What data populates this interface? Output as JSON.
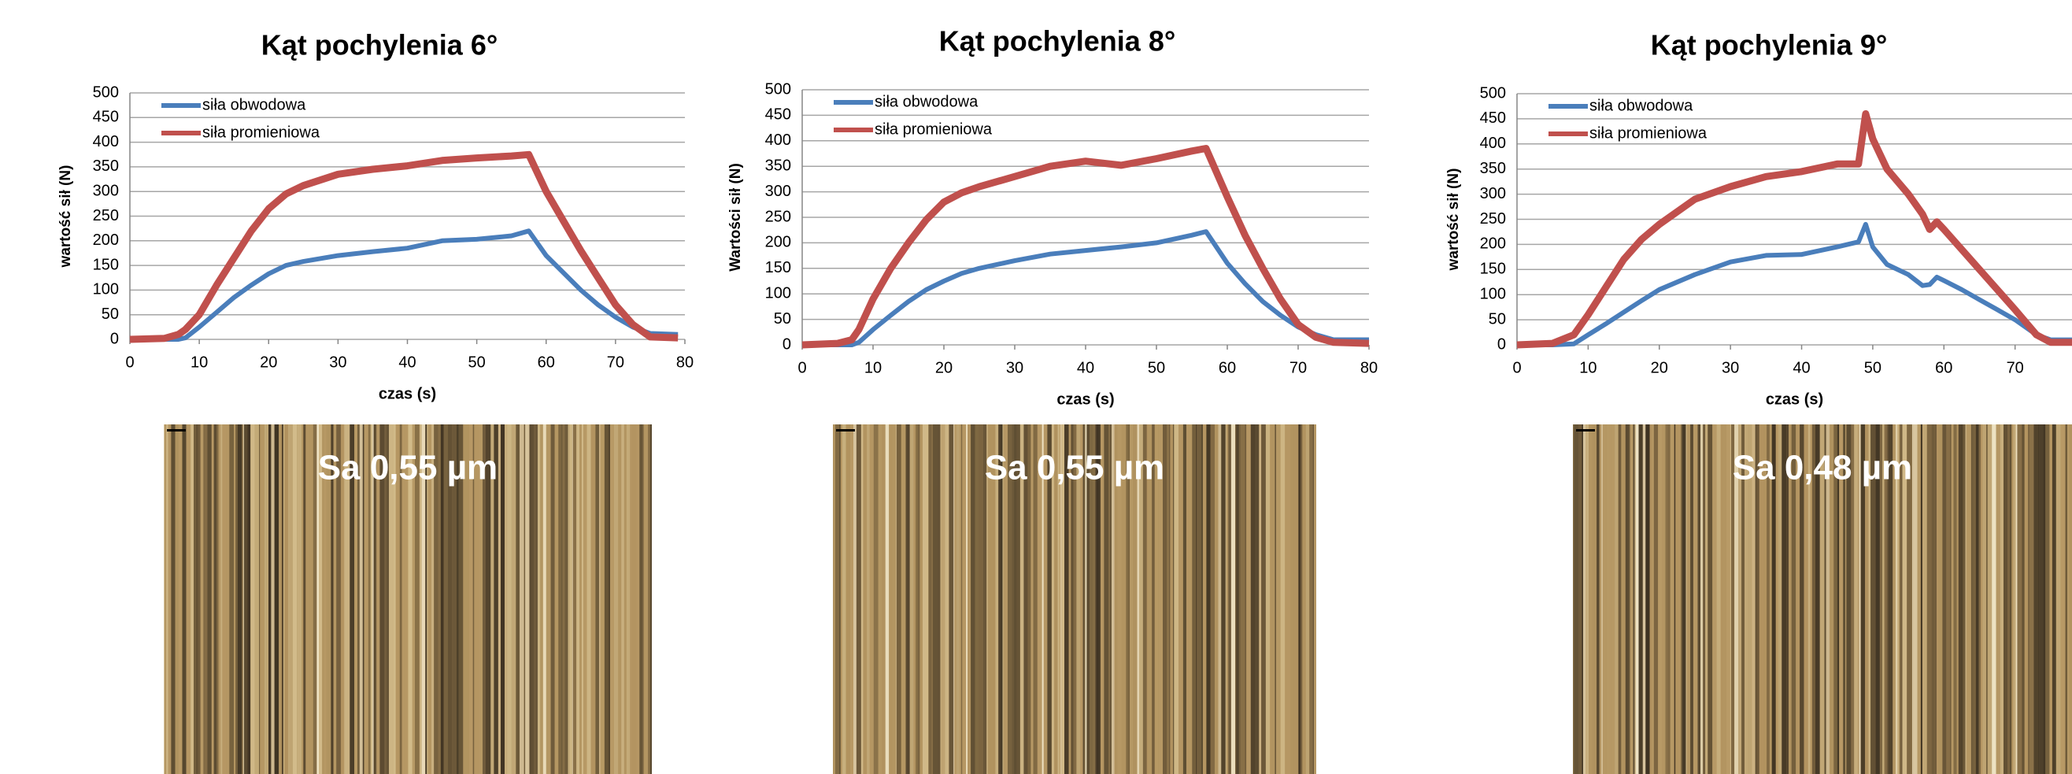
{
  "chart_data": [
    {
      "type": "line",
      "title": "Kąt pochylenia 6°",
      "x_label": "czas (s)",
      "y_label": "wartość sił (N)",
      "x": [
        0,
        5,
        7,
        8,
        10,
        12.5,
        15,
        17.5,
        20,
        22.5,
        25,
        30,
        35,
        40,
        45,
        50,
        55,
        57.5,
        60,
        62.5,
        65,
        67.5,
        70,
        72.5,
        75,
        79
      ],
      "series": [
        {
          "name": "siła obwodowa",
          "color": "#4a7ebb",
          "values": [
            0,
            0,
            0,
            3,
            25,
            55,
            85,
            110,
            133,
            150,
            158,
            170,
            178,
            185,
            200,
            203,
            210,
            220,
            170,
            135,
            100,
            70,
            45,
            25,
            12,
            10
          ]
        },
        {
          "name": "siła promieniowa",
          "color": "#c0504d",
          "values": [
            0,
            2,
            10,
            20,
            50,
            110,
            165,
            220,
            265,
            295,
            312,
            335,
            345,
            352,
            363,
            368,
            372,
            375,
            300,
            240,
            180,
            125,
            70,
            30,
            5,
            3
          ]
        }
      ],
      "xlim": [
        0,
        80
      ],
      "xticks": [
        0,
        10,
        20,
        30,
        40,
        50,
        60,
        70,
        80
      ],
      "ylim": [
        0,
        500
      ],
      "yticks": [
        0,
        50,
        100,
        150,
        200,
        250,
        300,
        350,
        400,
        450,
        500
      ],
      "grid": true,
      "legend": "upper-left",
      "image_label": "Sa 0,55 µm"
    },
    {
      "type": "line",
      "title": "Kąt pochylenia 8°",
      "x_label": "czas (s)",
      "y_label": "Wartości sił (N)",
      "x": [
        0,
        5,
        7,
        8,
        10,
        12.5,
        15,
        17.5,
        20,
        22.5,
        25,
        30,
        35,
        40,
        45,
        50,
        55,
        57,
        60,
        62.5,
        65,
        67.5,
        70,
        72.5,
        75,
        80
      ],
      "series": [
        {
          "name": "siła obwodowa",
          "color": "#4a7ebb",
          "values": [
            0,
            0,
            0,
            5,
            30,
            58,
            85,
            108,
            125,
            140,
            150,
            165,
            178,
            185,
            192,
            200,
            215,
            222,
            160,
            120,
            85,
            58,
            35,
            20,
            10,
            10
          ]
        },
        {
          "name": "siła promieniowa",
          "color": "#c0504d",
          "values": [
            0,
            3,
            10,
            30,
            90,
            150,
            200,
            245,
            280,
            298,
            310,
            330,
            350,
            360,
            352,
            365,
            380,
            385,
            290,
            215,
            150,
            90,
            40,
            15,
            5,
            3
          ]
        }
      ],
      "xlim": [
        0,
        80
      ],
      "xticks": [
        0,
        10,
        20,
        30,
        40,
        50,
        60,
        70,
        80
      ],
      "ylim": [
        0,
        500
      ],
      "yticks": [
        0,
        50,
        100,
        150,
        200,
        250,
        300,
        350,
        400,
        450,
        500
      ],
      "grid": true,
      "legend": "upper-left",
      "image_label": "Sa 0,55 µm"
    },
    {
      "type": "line",
      "title": "Kąt pochylenia 9°",
      "x_label": "czas (s)",
      "y_label": "wartość sił (N)",
      "x": [
        0,
        5,
        8,
        10,
        12.5,
        15,
        17.5,
        20,
        25,
        30,
        35,
        40,
        45,
        48,
        49,
        50,
        52,
        55,
        57,
        58,
        59,
        60,
        62.5,
        65,
        67.5,
        70,
        73,
        75,
        78
      ],
      "series": [
        {
          "name": "siła obwodowa",
          "color": "#4a7ebb",
          "values": [
            0,
            0,
            2,
            20,
            42,
            65,
            88,
            110,
            140,
            165,
            178,
            180,
            195,
            205,
            240,
            195,
            160,
            140,
            118,
            120,
            135,
            128,
            110,
            90,
            70,
            50,
            20,
            10,
            10
          ]
        },
        {
          "name": "siła promieniowa",
          "color": "#c0504d",
          "values": [
            0,
            3,
            20,
            60,
            115,
            170,
            210,
            240,
            290,
            315,
            335,
            345,
            360,
            360,
            460,
            410,
            350,
            300,
            260,
            230,
            245,
            230,
            190,
            150,
            110,
            70,
            20,
            5,
            5
          ]
        }
      ],
      "xlim": [
        0,
        78
      ],
      "xticks": [
        0,
        10,
        20,
        30,
        40,
        50,
        60,
        70
      ],
      "ylim": [
        0,
        500
      ],
      "yticks": [
        0,
        50,
        100,
        150,
        200,
        250,
        300,
        350,
        400,
        450,
        500
      ],
      "grid": true,
      "legend": "upper-left",
      "image_label": "Sa 0,48 µm"
    }
  ]
}
